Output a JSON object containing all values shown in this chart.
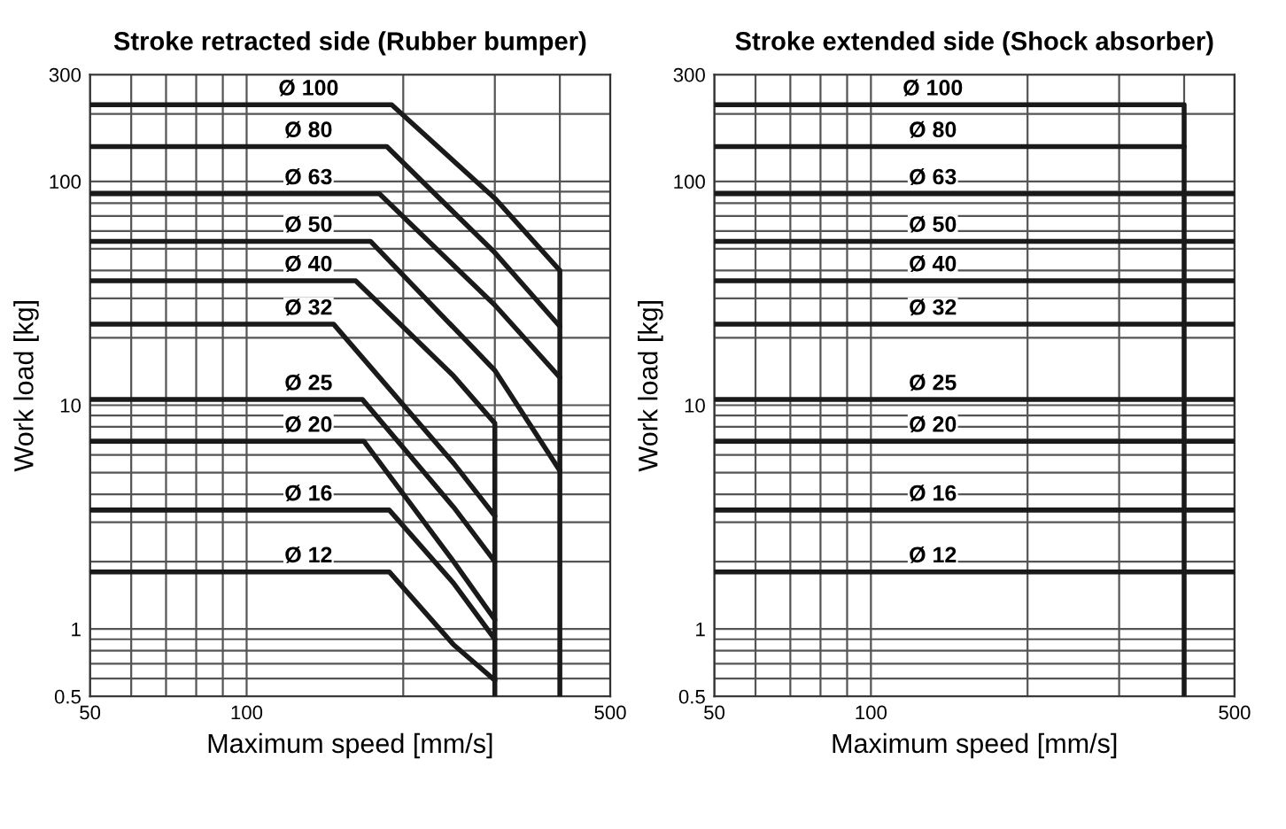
{
  "chart_data": [
    {
      "type": "line",
      "title": "Stroke retracted side (Rubber bumper)",
      "xlabel": "Maximum speed [mm/s]",
      "ylabel": "Work load [kg]",
      "log": "xy",
      "grid": true,
      "xlim": [
        50,
        500
      ],
      "ylim": [
        0.5,
        300
      ],
      "xticks": [
        50,
        100,
        500
      ],
      "yticks": [
        0.5,
        1,
        10,
        100,
        300
      ],
      "marker": "none",
      "line_style": "solid",
      "series": [
        {
          "name": "Ø 100",
          "color": "#1a1a1a",
          "x": [
            50,
            190,
            300,
            400,
            400
          ],
          "values": [
            220,
            220,
            84,
            40,
            0.5
          ]
        },
        {
          "name": "Ø 80",
          "color": "#1a1a1a",
          "x": [
            50,
            186,
            300,
            400
          ],
          "values": [
            143,
            143,
            48,
            22.5
          ]
        },
        {
          "name": "Ø 63",
          "color": "#1a1a1a",
          "x": [
            50,
            180,
            300,
            400
          ],
          "values": [
            88,
            88,
            28,
            13.3
          ]
        },
        {
          "name": "Ø 50",
          "color": "#1a1a1a",
          "x": [
            50,
            173,
            300,
            400
          ],
          "values": [
            54,
            54,
            14.3,
            5.1
          ]
        },
        {
          "name": "Ø 40",
          "color": "#1a1a1a",
          "x": [
            50,
            162,
            250,
            300,
            300
          ],
          "values": [
            36,
            36,
            13.5,
            8.3,
            0.5
          ]
        },
        {
          "name": "Ø 32",
          "color": "#1a1a1a",
          "x": [
            50,
            147,
            250,
            300
          ],
          "values": [
            23,
            23,
            5.5,
            3.2
          ]
        },
        {
          "name": "Ø 25",
          "color": "#1a1a1a",
          "x": [
            50,
            167,
            250,
            300
          ],
          "values": [
            10.6,
            10.6,
            3.5,
            2.0
          ]
        },
        {
          "name": "Ø 20",
          "color": "#1a1a1a",
          "x": [
            50,
            168,
            250,
            300
          ],
          "values": [
            6.9,
            6.9,
            2.0,
            1.1
          ]
        },
        {
          "name": "Ø 16",
          "color": "#1a1a1a",
          "x": [
            50,
            188,
            250,
            300
          ],
          "values": [
            3.4,
            3.4,
            1.6,
            0.9
          ]
        },
        {
          "name": "Ø 12",
          "color": "#1a1a1a",
          "x": [
            50,
            188,
            250,
            300
          ],
          "values": [
            1.8,
            1.8,
            0.85,
            0.59
          ]
        }
      ]
    },
    {
      "type": "line",
      "title": "Stroke extended side (Shock absorber)",
      "xlabel": "Maximum speed [mm/s]",
      "ylabel": "Work load [kg]",
      "log": "xy",
      "grid": true,
      "xlim": [
        50,
        500
      ],
      "ylim": [
        0.5,
        300
      ],
      "xticks": [
        50,
        100,
        500
      ],
      "yticks": [
        0.5,
        1,
        10,
        100,
        300
      ],
      "marker": "none",
      "line_style": "solid",
      "series": [
        {
          "name": "Ø 100",
          "color": "#1a1a1a",
          "x": [
            50,
            400,
            400
          ],
          "values": [
            220,
            220,
            0.5
          ]
        },
        {
          "name": "Ø 80",
          "color": "#1a1a1a",
          "x": [
            50,
            400
          ],
          "values": [
            143,
            143
          ]
        },
        {
          "name": "Ø 63",
          "color": "#1a1a1a",
          "x": [
            50,
            500
          ],
          "values": [
            88,
            88
          ]
        },
        {
          "name": "Ø 50",
          "color": "#1a1a1a",
          "x": [
            50,
            500
          ],
          "values": [
            54,
            54
          ]
        },
        {
          "name": "Ø 40",
          "color": "#1a1a1a",
          "x": [
            50,
            500
          ],
          "values": [
            36,
            36
          ]
        },
        {
          "name": "Ø 32",
          "color": "#1a1a1a",
          "x": [
            50,
            500
          ],
          "values": [
            23,
            23
          ]
        },
        {
          "name": "Ø 25",
          "color": "#1a1a1a",
          "x": [
            50,
            500
          ],
          "values": [
            10.6,
            10.6
          ]
        },
        {
          "name": "Ø 20",
          "color": "#1a1a1a",
          "x": [
            50,
            500
          ],
          "values": [
            6.9,
            6.9
          ]
        },
        {
          "name": "Ø 16",
          "color": "#1a1a1a",
          "x": [
            50,
            500
          ],
          "values": [
            3.4,
            3.4
          ]
        },
        {
          "name": "Ø 12",
          "color": "#1a1a1a",
          "x": [
            50,
            500
          ],
          "values": [
            1.8,
            1.8
          ]
        }
      ]
    }
  ]
}
